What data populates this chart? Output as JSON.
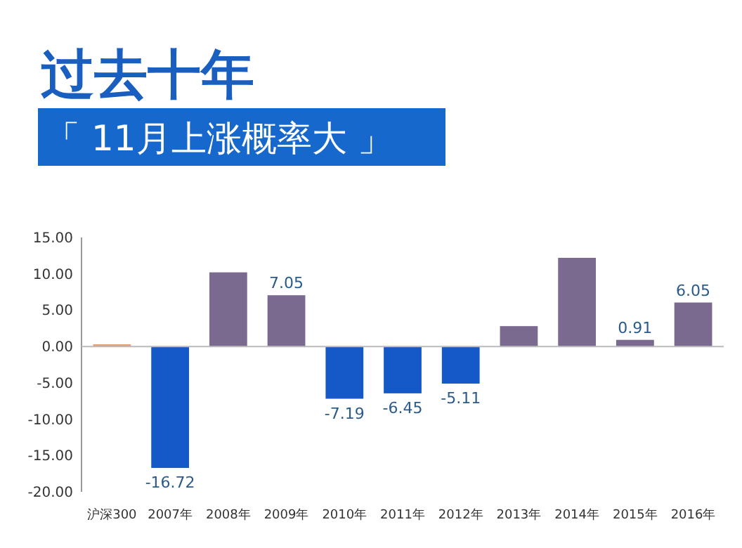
{
  "chart_data": {
    "type": "bar",
    "title": "过去十年",
    "subtitle": "「 11月上涨概率大 」",
    "categories": [
      "沪深300",
      "2007年",
      "2008年",
      "2009年",
      "2010年",
      "2011年",
      "2012年",
      "2013年",
      "2014年",
      "2015年",
      "2016年"
    ],
    "values": [
      0.3,
      -16.72,
      10.2,
      7.05,
      -7.19,
      -6.45,
      -5.11,
      2.8,
      12.2,
      0.91,
      6.05
    ],
    "value_labels": [
      null,
      "-16.72",
      null,
      "7.05",
      "-7.19",
      "-6.45",
      "-5.11",
      null,
      null,
      "0.91",
      "6.05"
    ],
    "colors": [
      "#e8a070",
      "#1558c8",
      "#7a6a8f",
      "#7a6a8f",
      "#1558c8",
      "#1558c8",
      "#1558c8",
      "#7a6a8f",
      "#7a6a8f",
      "#7a6a8f",
      "#7a6a8f"
    ],
    "ylim": [
      -20,
      15
    ],
    "yticks": [
      {
        "value": -20,
        "label": "-20.00"
      },
      {
        "value": -15,
        "label": "-15.00"
      },
      {
        "value": -10,
        "label": "-10.00"
      },
      {
        "value": -5,
        "label": "-5.00"
      },
      {
        "value": 0,
        "label": "0.00"
      },
      {
        "value": 5,
        "label": "5.00"
      },
      {
        "value": 10,
        "label": "10.00"
      },
      {
        "value": 15,
        "label": "15.00"
      }
    ],
    "tick_labels": true
  }
}
